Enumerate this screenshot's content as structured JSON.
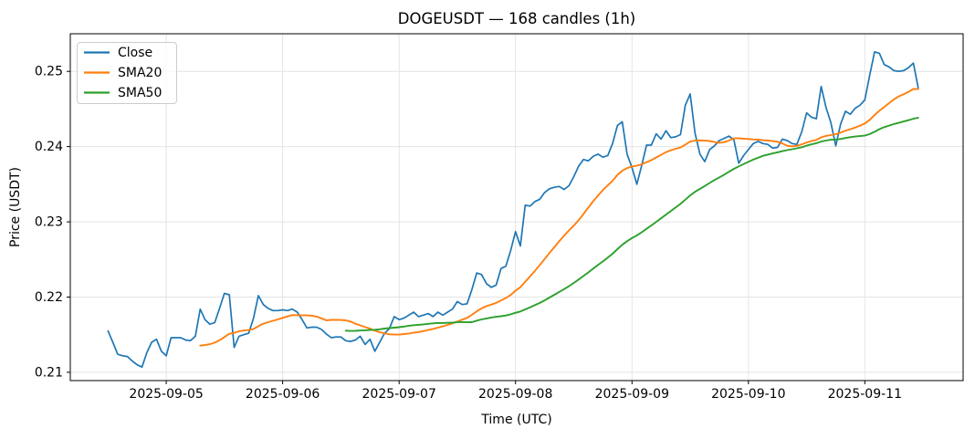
{
  "title": "DOGEUSDT — 168 candles (1h)",
  "chart_data": {
    "type": "line",
    "title": "DOGEUSDT — 168 candles (1h)",
    "xlabel": "Time (UTC)",
    "ylabel": "Price (USDT)",
    "symbol": "DOGEUSDT",
    "interval": "1h",
    "candles": 168,
    "grid": true,
    "legend_position": "upper left",
    "y_ticks": [
      0.21,
      0.22,
      0.23,
      0.24,
      0.25
    ],
    "ylim": [
      0.2089,
      0.255
    ],
    "x_ticks": [
      {
        "hour": 12,
        "label": "2025-09-05"
      },
      {
        "hour": 36,
        "label": "2025-09-06"
      },
      {
        "hour": 60,
        "label": "2025-09-07"
      },
      {
        "hour": 84,
        "label": "2025-09-08"
      },
      {
        "hour": 108,
        "label": "2025-09-09"
      },
      {
        "hour": 132,
        "label": "2025-09-10"
      },
      {
        "hour": 156,
        "label": "2025-09-11"
      }
    ],
    "series": [
      {
        "name": "Close",
        "color": "#1f77b4",
        "values": [
          0.2155,
          0.214,
          0.2124,
          0.2122,
          0.2121,
          0.2115,
          0.211,
          0.2107,
          0.2126,
          0.214,
          0.2144,
          0.2128,
          0.2122,
          0.2146,
          0.2146,
          0.2146,
          0.2143,
          0.2142,
          0.2148,
          0.2184,
          0.217,
          0.2164,
          0.2166,
          0.2185,
          0.2205,
          0.2203,
          0.2133,
          0.2148,
          0.215,
          0.2152,
          0.2172,
          0.2202,
          0.219,
          0.2185,
          0.2182,
          0.2182,
          0.2183,
          0.2182,
          0.2184,
          0.218,
          0.217,
          0.2159,
          0.216,
          0.216,
          0.2157,
          0.2151,
          0.2146,
          0.2147,
          0.2147,
          0.2142,
          0.2141,
          0.2143,
          0.2148,
          0.2137,
          0.2144,
          0.2128,
          0.214,
          0.2152,
          0.2158,
          0.2174,
          0.217,
          0.2172,
          0.2176,
          0.218,
          0.2174,
          0.2176,
          0.2178,
          0.2174,
          0.218,
          0.2176,
          0.218,
          0.2184,
          0.2194,
          0.219,
          0.2191,
          0.221,
          0.2232,
          0.223,
          0.2218,
          0.2213,
          0.2216,
          0.2238,
          0.2241,
          0.2262,
          0.2287,
          0.2268,
          0.2322,
          0.2321,
          0.2327,
          0.233,
          0.2339,
          0.2344,
          0.2346,
          0.2347,
          0.2343,
          0.2348,
          0.236,
          0.2374,
          0.2383,
          0.2381,
          0.2387,
          0.239,
          0.2386,
          0.2388,
          0.2404,
          0.2428,
          0.2433,
          0.239,
          0.2372,
          0.235,
          0.2375,
          0.2402,
          0.2402,
          0.2417,
          0.241,
          0.2421,
          0.2412,
          0.2413,
          0.2416,
          0.2455,
          0.247,
          0.2418,
          0.239,
          0.238,
          0.2396,
          0.2401,
          0.2408,
          0.2411,
          0.2414,
          0.2409,
          0.2378,
          0.2388,
          0.2396,
          0.2404,
          0.2407,
          0.2404,
          0.2403,
          0.2398,
          0.2399,
          0.241,
          0.2408,
          0.2404,
          0.2403,
          0.242,
          0.2445,
          0.2439,
          0.2437,
          0.248,
          0.2452,
          0.2432,
          0.2401,
          0.243,
          0.2447,
          0.2443,
          0.2451,
          0.2455,
          0.2462,
          0.2495,
          0.2526,
          0.2524,
          0.2509,
          0.2506,
          0.2501,
          0.25,
          0.2501,
          0.2505,
          0.2511,
          0.2478
        ]
      },
      {
        "name": "SMA20",
        "color": "#ff7f0e",
        "window": 20,
        "derived_from": "Close"
      },
      {
        "name": "SMA50",
        "color": "#2ca02c",
        "window": 50,
        "derived_from": "Close"
      }
    ]
  }
}
